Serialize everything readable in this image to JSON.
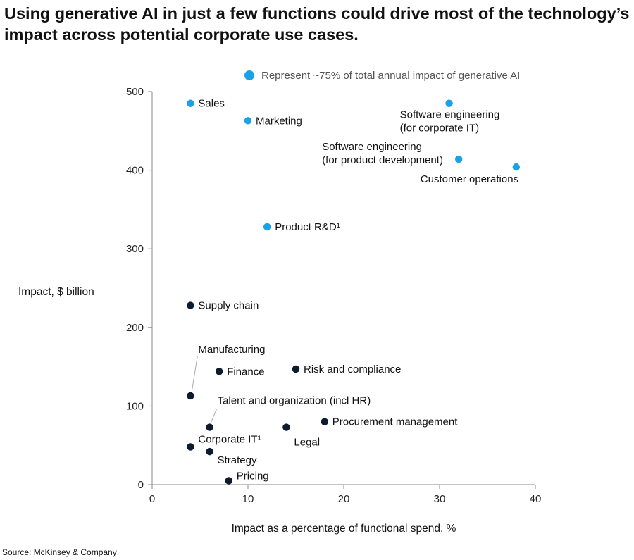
{
  "title_lines": [
    "Using generative AI in just a few functions could drive most of the technology’s",
    "impact across potential corporate use cases."
  ],
  "source": "Source: McKinsey & Company",
  "colors": {
    "highlight": "#1aa1e8",
    "other": "#0d1b2e",
    "axis": "#888888",
    "leader": "#aaaaaa"
  },
  "chart_data": {
    "type": "scatter",
    "title": "Using generative AI in just a few functions could drive most of the technology’s impact across potential corporate use cases.",
    "xlabel": "Impact as a percentage of functional spend, %",
    "ylabel": "Impact, $ billion",
    "xlim": [
      0,
      40
    ],
    "ylim": [
      0,
      500
    ],
    "xticks": [
      0,
      10,
      20,
      30,
      40
    ],
    "yticks": [
      0,
      100,
      200,
      300,
      400,
      500
    ],
    "grid": false,
    "legend": {
      "label": "Represent ~75% of total annual impact of generative AI",
      "placement": "top"
    },
    "points": [
      {
        "label": [
          "Sales"
        ],
        "x": 4,
        "y": 485,
        "group": "highlight"
      },
      {
        "label": [
          "Marketing"
        ],
        "x": 10,
        "y": 463,
        "group": "highlight"
      },
      {
        "label": [
          "Software engineering",
          "(for corporate IT)"
        ],
        "x": 31,
        "y": 485,
        "group": "highlight"
      },
      {
        "label": [
          "Software engineering",
          "(for product development)"
        ],
        "x": 32,
        "y": 414,
        "group": "highlight"
      },
      {
        "label": [
          "Customer operations"
        ],
        "x": 38,
        "y": 404,
        "group": "highlight"
      },
      {
        "label": [
          "Product R&D¹"
        ],
        "x": 12,
        "y": 328,
        "group": "highlight"
      },
      {
        "label": [
          "Supply chain"
        ],
        "x": 4,
        "y": 228,
        "group": "other"
      },
      {
        "label": [
          "Manufacturing"
        ],
        "x": 4,
        "y": 113,
        "group": "other"
      },
      {
        "label": [
          "Finance"
        ],
        "x": 7,
        "y": 144,
        "group": "other"
      },
      {
        "label": [
          "Risk and compliance"
        ],
        "x": 15,
        "y": 147,
        "group": "other"
      },
      {
        "label": [
          "Talent and organization (incl HR)"
        ],
        "x": 6,
        "y": 73,
        "group": "other"
      },
      {
        "label": [
          "Legal"
        ],
        "x": 14,
        "y": 73,
        "group": "other"
      },
      {
        "label": [
          "Procurement management"
        ],
        "x": 18,
        "y": 80,
        "group": "other"
      },
      {
        "label": [
          "Corporate IT¹"
        ],
        "x": 4,
        "y": 48,
        "group": "other"
      },
      {
        "label": [
          "Strategy"
        ],
        "x": 6,
        "y": 42,
        "group": "other"
      },
      {
        "label": [
          "Pricing"
        ],
        "x": 8,
        "y": 5,
        "group": "other"
      }
    ]
  }
}
